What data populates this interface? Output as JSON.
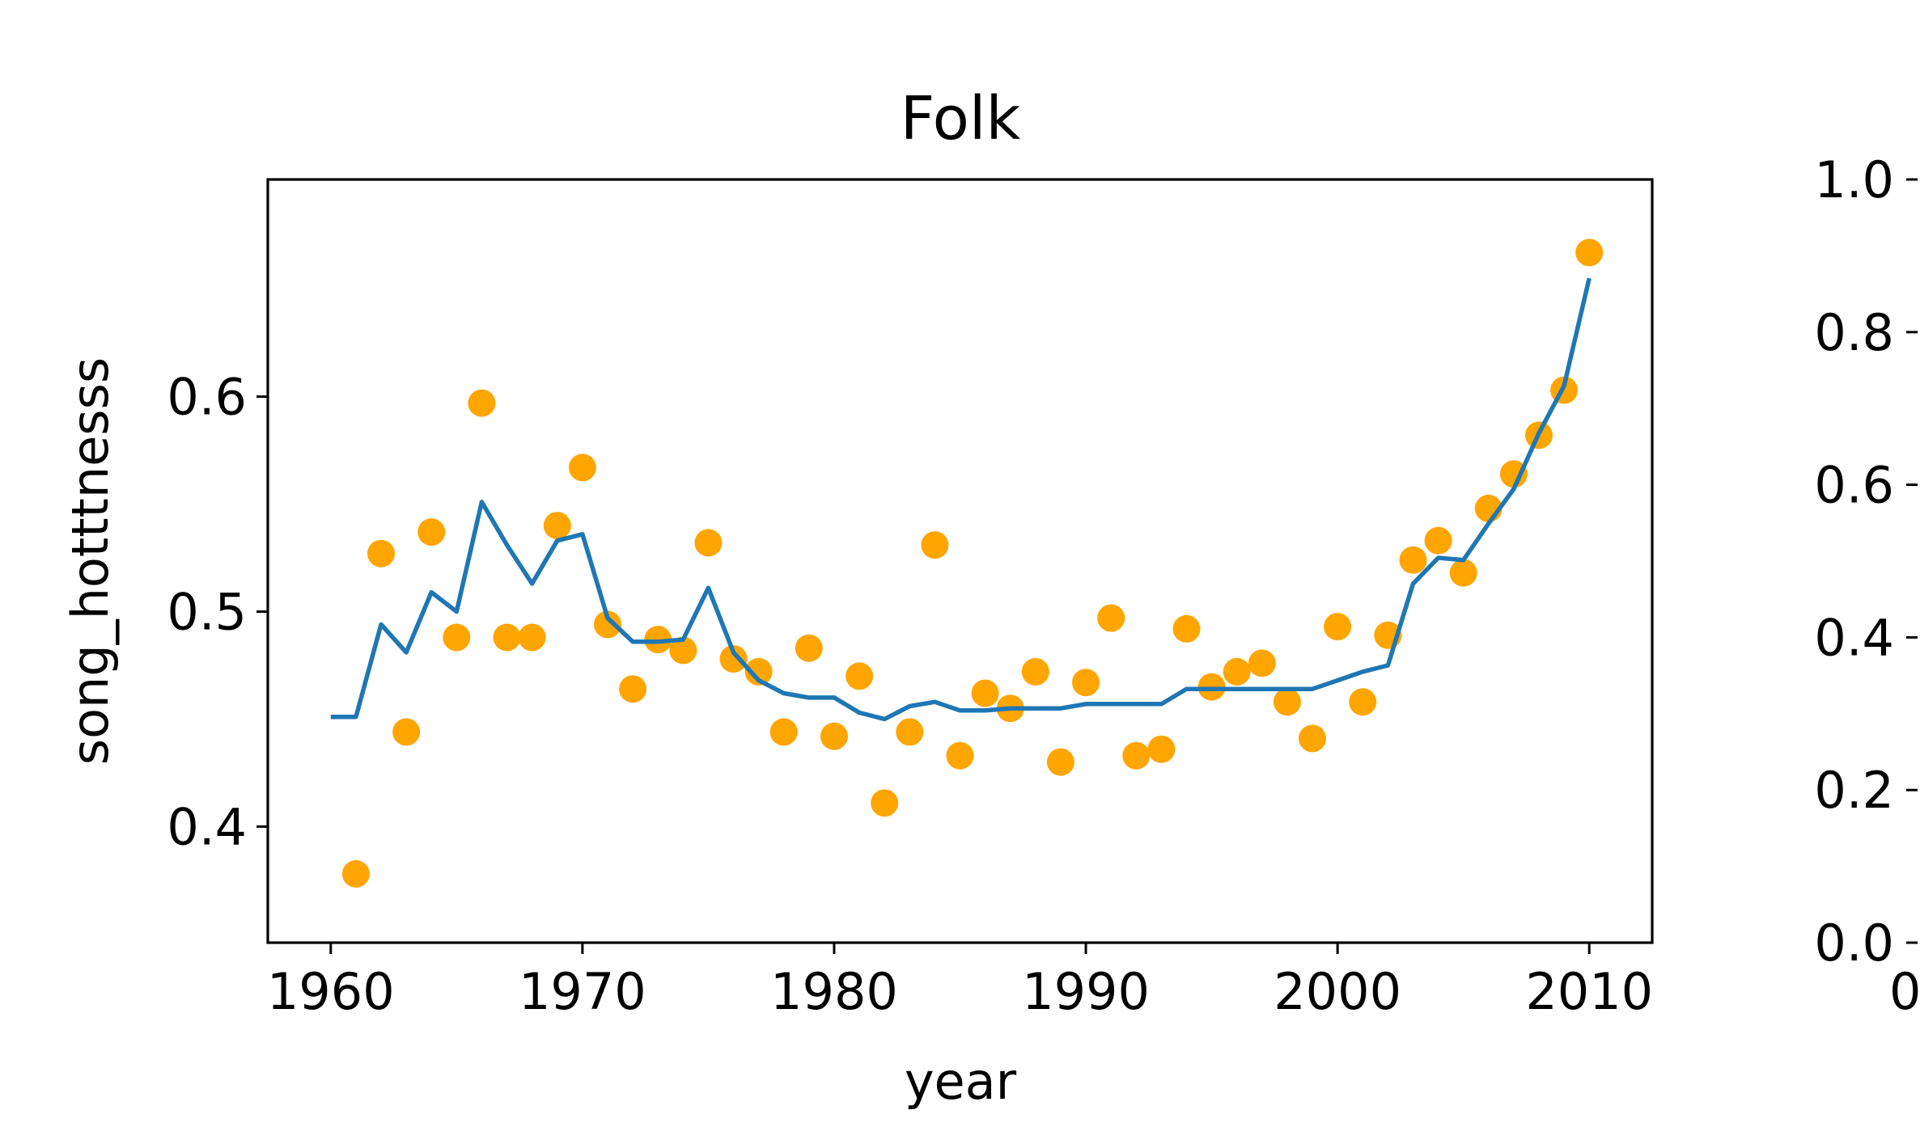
{
  "chart_data": [
    {
      "type": "scatter",
      "title": "Folk",
      "xlabel": "year",
      "ylabel": "song_hotttnesss",
      "xlim": [
        1957.5,
        2012.5
      ],
      "ylim": [
        0.346,
        0.701
      ],
      "xticks": [
        1960,
        1970,
        1980,
        1990,
        2000,
        2010
      ],
      "xtick_labels": [
        "1960",
        "1970",
        "1980",
        "1990",
        "2000",
        "2010"
      ],
      "yticks": [
        0.4,
        0.5,
        0.6
      ],
      "ytick_labels": [
        "0.4",
        "0.5",
        "0.6"
      ],
      "grid": false,
      "legend": "none",
      "colors": {
        "points": "#FFA500",
        "line": "#1F77B4"
      },
      "series": [
        {
          "kind": "scatter",
          "x": [
            1961,
            1962,
            1963,
            1964,
            1965,
            1966,
            1967,
            1968,
            1969,
            1970,
            1971,
            1972,
            1973,
            1974,
            1975,
            1976,
            1977,
            1978,
            1979,
            1980,
            1981,
            1982,
            1983,
            1984,
            1985,
            1986,
            1987,
            1988,
            1989,
            1990,
            1991,
            1992,
            1993,
            1994,
            1995,
            1996,
            1997,
            1998,
            1999,
            2000,
            2001,
            2002,
            2003,
            2004,
            2005,
            2006,
            2007,
            2008,
            2009,
            2010
          ],
          "y": [
            0.378,
            0.527,
            0.444,
            0.537,
            0.488,
            0.597,
            0.488,
            0.488,
            0.54,
            0.567,
            0.494,
            0.464,
            0.487,
            0.482,
            0.532,
            0.478,
            0.472,
            0.444,
            0.483,
            0.442,
            0.47,
            0.411,
            0.444,
            0.531,
            0.433,
            0.462,
            0.455,
            0.472,
            0.43,
            0.467,
            0.497,
            0.433,
            0.436,
            0.492,
            0.465,
            0.472,
            0.476,
            0.458,
            0.441,
            0.493,
            0.458,
            0.489,
            0.524,
            0.533,
            0.518,
            0.548,
            0.564,
            0.582,
            0.603,
            0.667
          ]
        },
        {
          "kind": "line",
          "x": [
            1960,
            1961,
            1962,
            1963,
            1964,
            1965,
            1966,
            1967,
            1968,
            1969,
            1970,
            1971,
            1972,
            1973,
            1974,
            1975,
            1976,
            1977,
            1978,
            1979,
            1980,
            1981,
            1982,
            1983,
            1984,
            1985,
            1986,
            1987,
            1988,
            1989,
            1990,
            1991,
            1992,
            1993,
            1994,
            1995,
            1996,
            1997,
            1998,
            1999,
            2000,
            2001,
            2002,
            2003,
            2004,
            2005,
            2006,
            2007,
            2008,
            2009,
            2010
          ],
          "y": [
            0.451,
            0.451,
            0.494,
            0.481,
            0.509,
            0.5,
            0.551,
            0.531,
            0.513,
            0.533,
            0.536,
            0.497,
            0.486,
            0.486,
            0.487,
            0.511,
            0.481,
            0.468,
            0.462,
            0.46,
            0.46,
            0.453,
            0.45,
            0.456,
            0.458,
            0.454,
            0.454,
            0.455,
            0.455,
            0.455,
            0.457,
            0.457,
            0.457,
            0.457,
            0.464,
            0.464,
            0.464,
            0.464,
            0.464,
            0.464,
            0.468,
            0.472,
            0.475,
            0.513,
            0.525,
            0.524,
            0.541,
            0.557,
            0.583,
            0.605,
            0.655
          ]
        }
      ]
    },
    {
      "type": "line",
      "title": "",
      "xlabel": "",
      "ylabel": "",
      "ylim": [
        0.0,
        1.0
      ],
      "yticks": [
        0.0,
        0.2,
        0.4,
        0.6,
        0.8,
        1.0
      ],
      "ytick_labels": [
        "0.0",
        "0.2",
        "0.4",
        "0.6",
        "0.8",
        "1.0"
      ],
      "xtick_labels_visible": [
        "0"
      ],
      "series": []
    }
  ]
}
